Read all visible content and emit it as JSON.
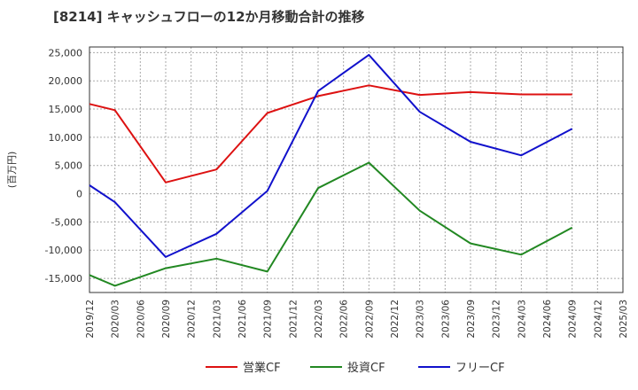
{
  "chart_data": {
    "type": "line",
    "title": "[8214]  キャッシュフローの12か月移動合計の推移",
    "ylabel": "(百万円)",
    "xlabel": "",
    "ylim": [
      -17500,
      26000
    ],
    "yticks": [
      -15000,
      -10000,
      -5000,
      0,
      5000,
      10000,
      15000,
      20000,
      25000
    ],
    "ytick_labels": [
      "-15,000",
      "-10,000",
      "-5,000",
      "0",
      "5,000",
      "10,000",
      "15,000",
      "20,000",
      "25,000"
    ],
    "categories": [
      "2019/12",
      "2020/03",
      "2020/06",
      "2020/09",
      "2020/12",
      "2021/03",
      "2021/06",
      "2021/09",
      "2021/12",
      "2022/03",
      "2022/06",
      "2022/09",
      "2022/12",
      "2023/03",
      "2023/06",
      "2023/09",
      "2023/12",
      "2024/03",
      "2024/06",
      "2024/09",
      "2024/12",
      "2025/03"
    ],
    "grid": true,
    "legend_position": "bottom",
    "series": [
      {
        "name": "営業CF",
        "color": "#dd1111",
        "values": [
          15900,
          14800,
          null,
          2000,
          null,
          4300,
          null,
          14300,
          null,
          17300,
          null,
          19200,
          null,
          17500,
          null,
          18000,
          null,
          17600,
          null,
          17600,
          null,
          null
        ]
      },
      {
        "name": "投資CF",
        "color": "#228822",
        "values": [
          -14400,
          -16300,
          null,
          -13200,
          null,
          -11500,
          null,
          -13800,
          null,
          1000,
          null,
          5500,
          null,
          -3000,
          null,
          -8800,
          null,
          -10800,
          null,
          -6000,
          null,
          null
        ]
      },
      {
        "name": "フリーCF",
        "color": "#1111cc",
        "values": [
          1500,
          -1500,
          null,
          -11200,
          null,
          -7100,
          null,
          500,
          null,
          18200,
          null,
          24600,
          null,
          14500,
          null,
          9200,
          null,
          6800,
          null,
          11500,
          null,
          null
        ]
      }
    ]
  }
}
